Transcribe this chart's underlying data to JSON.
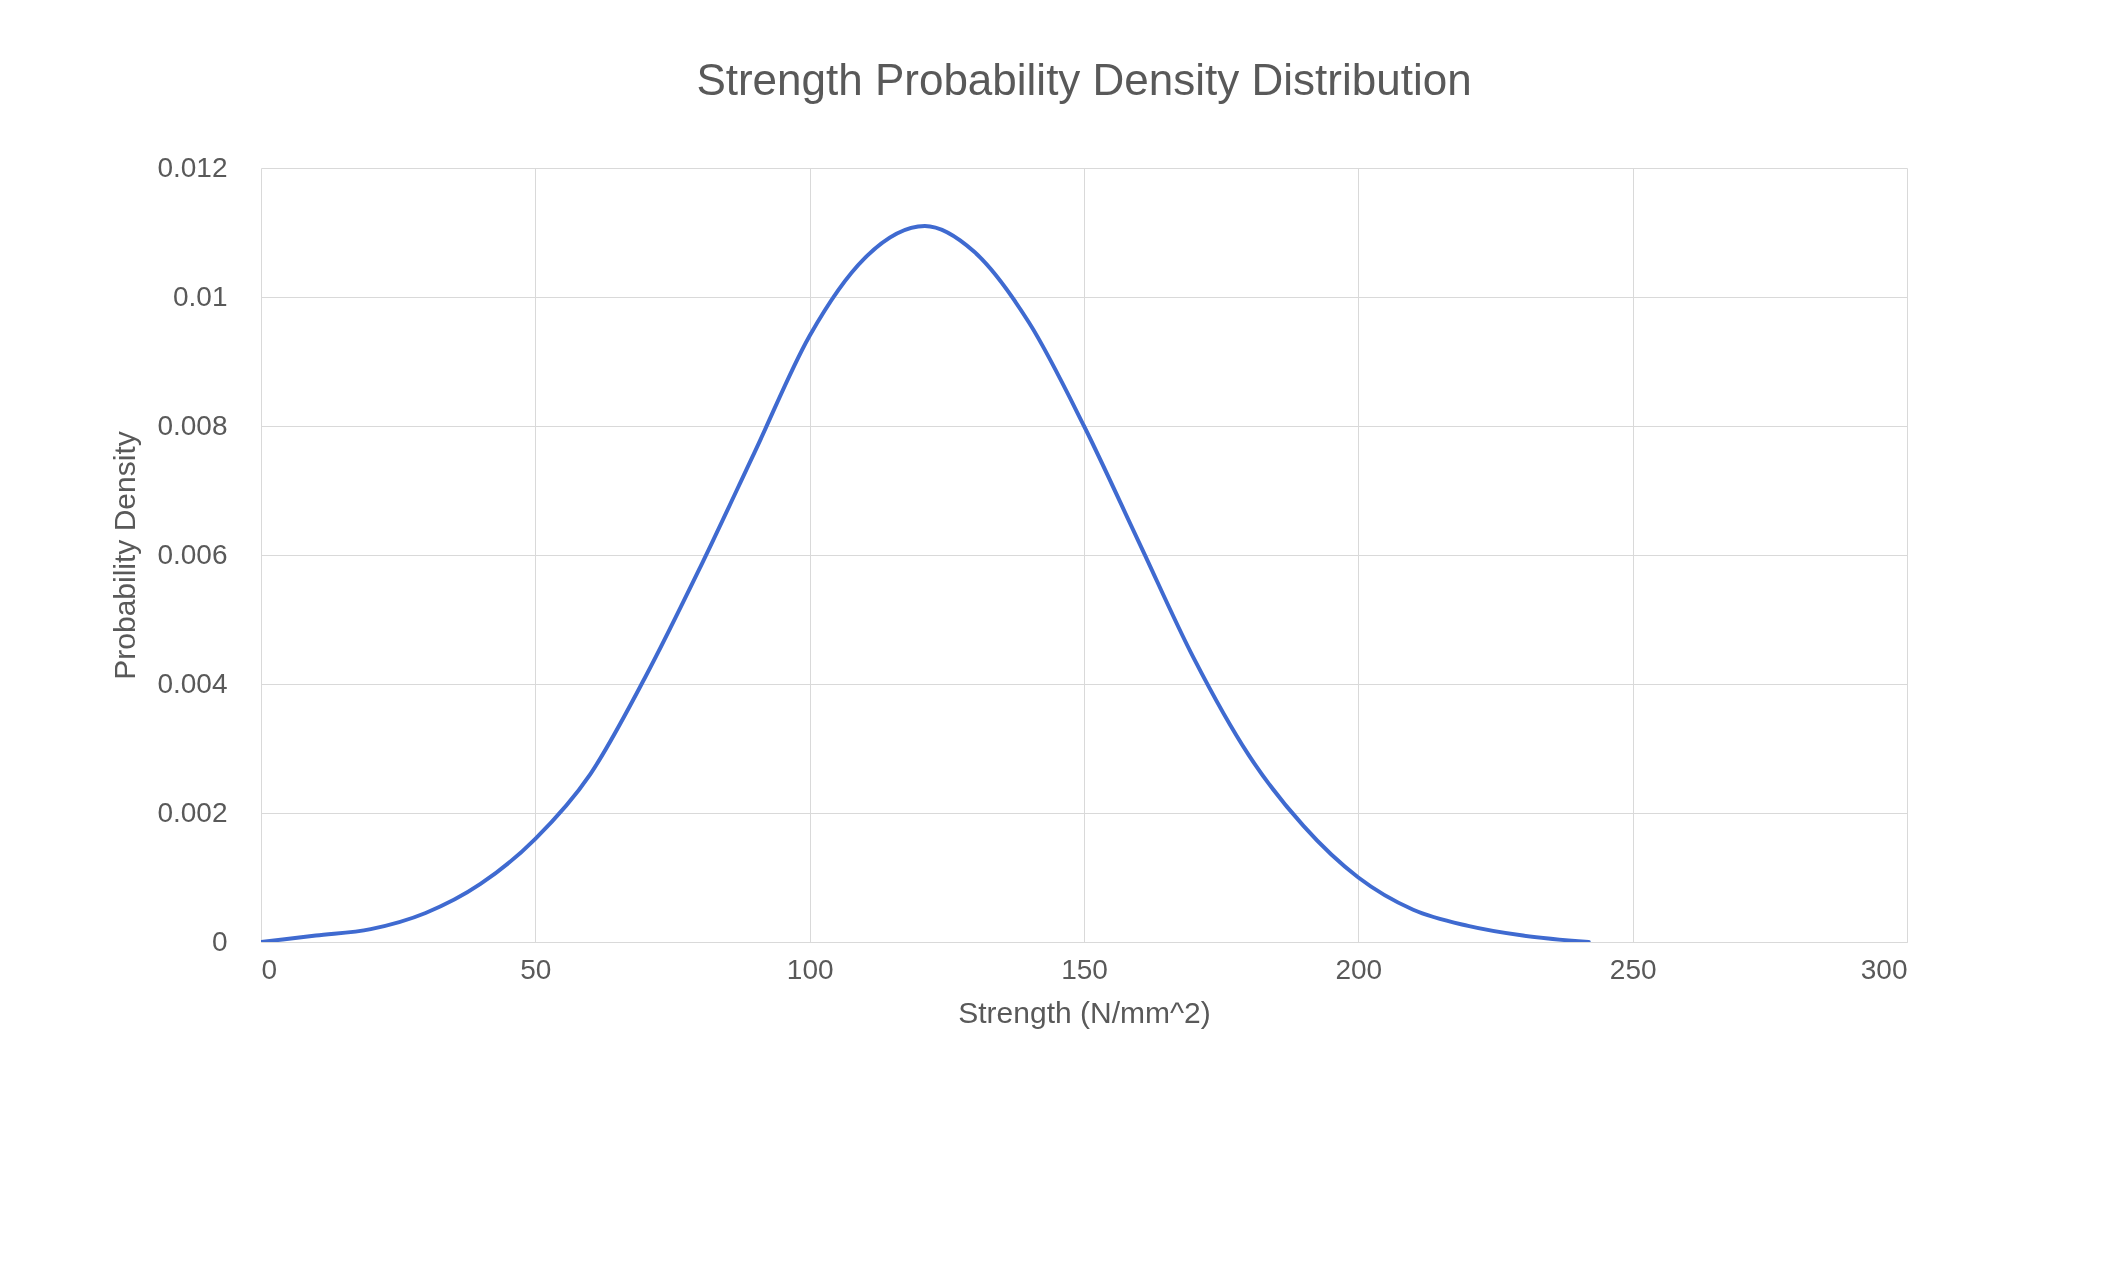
{
  "chart_data": {
    "type": "line",
    "title": "Strength Probability Density Distribution",
    "xlabel": "Strength (N/mm^2)",
    "ylabel": "Probability Density",
    "x": [
      0,
      10,
      20,
      30,
      40,
      50,
      60,
      70,
      80,
      90,
      100,
      110,
      121,
      130,
      140,
      150,
      160,
      170,
      180,
      190,
      200,
      210,
      220,
      230,
      242
    ],
    "series": [
      {
        "color": "#3f6ad0",
        "values": [
          0,
          0.0001,
          0.0002,
          0.00045,
          0.0009,
          0.0016,
          0.0026,
          0.0041,
          0.0058,
          0.0076,
          0.0094,
          0.0106,
          0.0111,
          0.0107,
          0.0096,
          0.008,
          0.0062,
          0.0044,
          0.0029,
          0.0018,
          0.001,
          0.0005,
          0.00025,
          0.0001,
          0
        ]
      }
    ],
    "xlim": [
      0,
      300
    ],
    "xticks": [
      0,
      50,
      100,
      150,
      200,
      250,
      300
    ],
    "ylim": [
      0,
      0.012
    ],
    "yticks": [
      0,
      0.002,
      0.004,
      0.006,
      0.008,
      0.01,
      0.012
    ],
    "grid": true,
    "marker": "none",
    "line_style": "solid"
  }
}
